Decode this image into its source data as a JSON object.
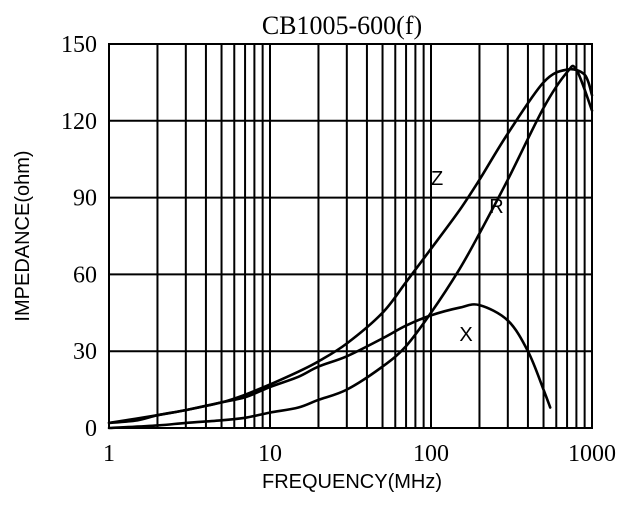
{
  "chart_data": {
    "type": "line",
    "title": "CB1005-600(f)",
    "xlabel": "FREQUENCY(MHz)",
    "ylabel": "IMPEDANCE(ohm)",
    "xscale": "log",
    "xlim": [
      1,
      1000
    ],
    "ylim": [
      0,
      150
    ],
    "xticks": [
      "1",
      "10",
      "100",
      "1000"
    ],
    "yticks": [
      "0",
      "30",
      "60",
      "90",
      "120",
      "150"
    ],
    "grid": true,
    "series": [
      {
        "name": "Z",
        "x": [
          1,
          1.5,
          2,
          3,
          5,
          7,
          10,
          15,
          20,
          30,
          50,
          70,
          100,
          150,
          200,
          300,
          500,
          700,
          900,
          1000
        ],
        "y": [
          2,
          3,
          5,
          7,
          10,
          13,
          17,
          22,
          26,
          33,
          45,
          57,
          70,
          85,
          97,
          115,
          135,
          140,
          138,
          130
        ]
      },
      {
        "name": "R",
        "x": [
          1,
          2,
          3,
          5,
          7,
          10,
          15,
          20,
          30,
          50,
          70,
          100,
          150,
          200,
          300,
          500,
          700,
          800,
          1000
        ],
        "y": [
          0,
          1,
          2,
          3,
          4,
          6,
          8,
          11,
          15,
          24,
          32,
          45,
          62,
          76,
          97,
          125,
          139,
          140,
          124
        ]
      },
      {
        "name": "X",
        "x": [
          1,
          2,
          3,
          5,
          7,
          10,
          15,
          20,
          30,
          50,
          70,
          100,
          150,
          200,
          300,
          400,
          500,
          550
        ],
        "y": [
          2,
          5,
          7,
          10,
          12,
          16,
          20,
          24,
          28,
          35,
          40,
          44,
          47,
          48,
          42,
          30,
          15,
          8
        ]
      }
    ]
  }
}
